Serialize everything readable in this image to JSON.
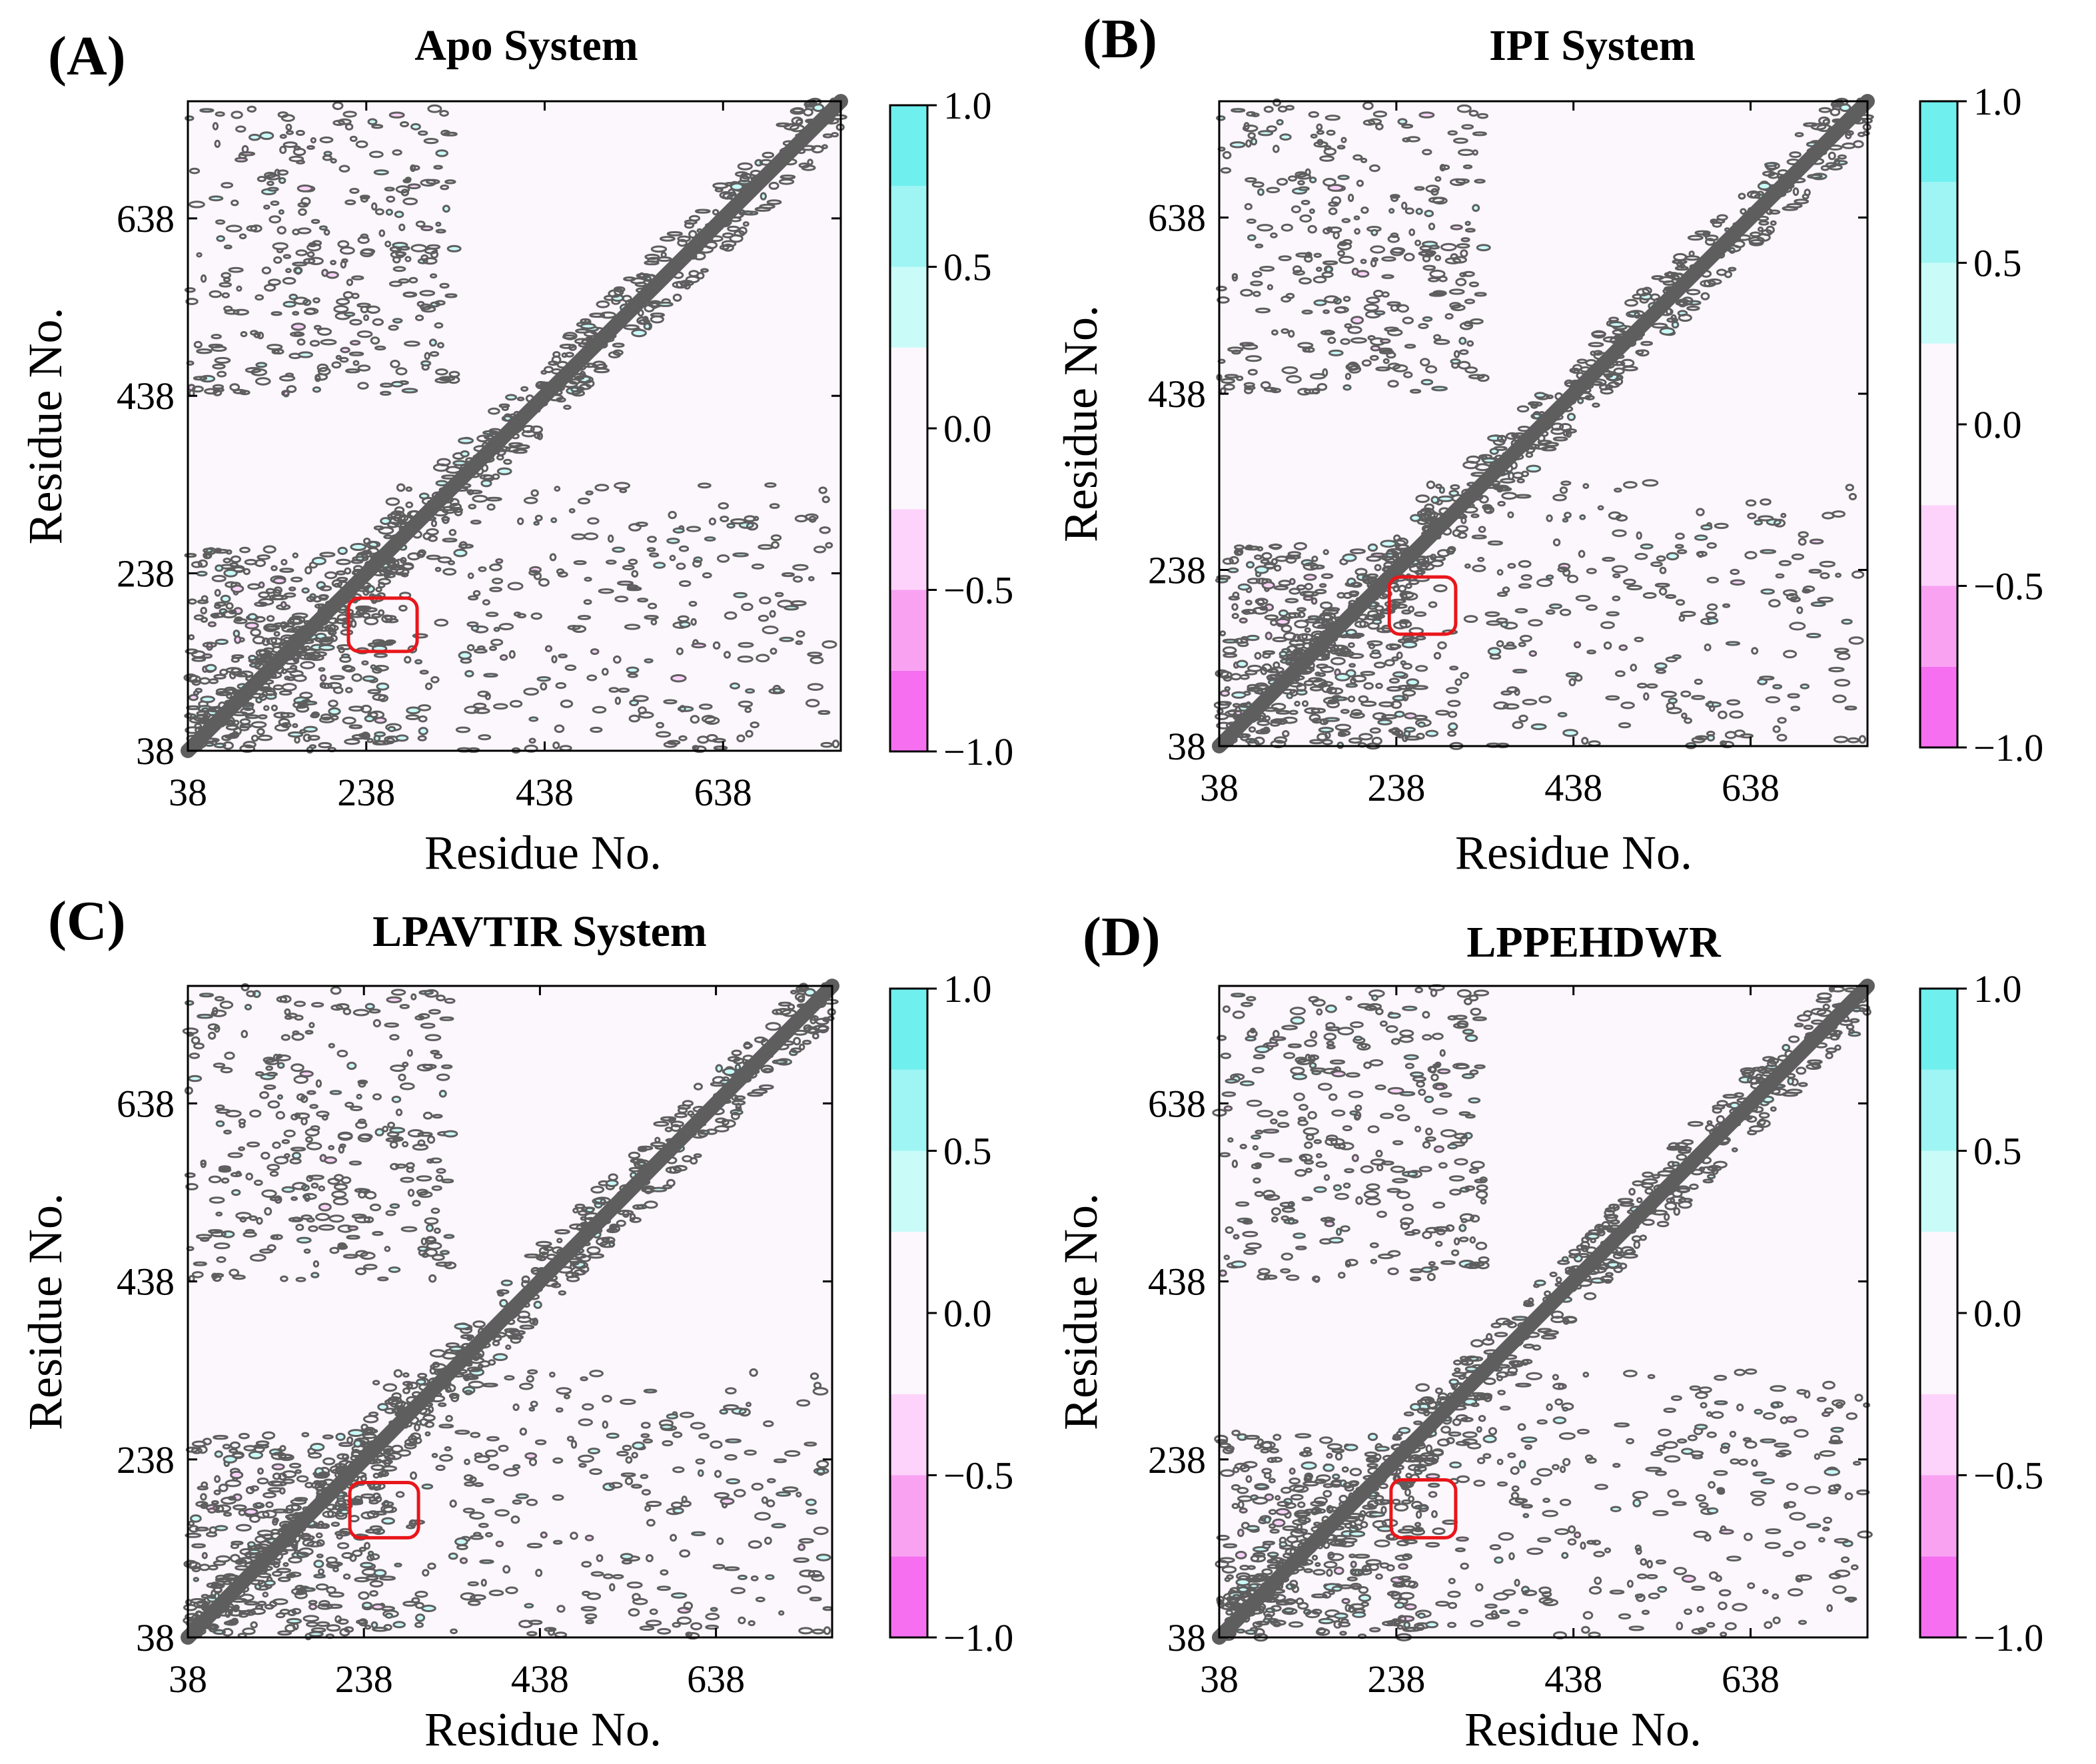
{
  "figure_type": "Dynamic cross-correlation maps (4 panels)",
  "colors": {
    "contour": "#5e5e5e",
    "frame": "#000000",
    "highlight_box": "#e8161b",
    "colorbar": [
      "#f56ff0",
      "#f9a2f2",
      "#fdd3fb",
      "#fbf7fc",
      "#fbf7fc",
      "#c9fbf9",
      "#9ef5f4",
      "#6ff0ef"
    ]
  },
  "chart_data": [
    {
      "type": "heatmap",
      "panel_label": "(A)",
      "title": "Apo System",
      "xlabel": "Residue No.",
      "ylabel": "Residue No.",
      "xticks": [
        "38",
        "238",
        "438",
        "638"
      ],
      "yticks": [
        "38",
        "238",
        "438",
        "638"
      ],
      "xlim": [
        38,
        770
      ],
      "ylim": [
        38,
        770
      ],
      "colorbar": {
        "ticks": [
          "1.0",
          "0.5",
          "0.0",
          "−1.0"
        ],
        "tick_values": [
          1.0,
          0.5,
          0.0,
          -1.0
        ],
        "levels": [
          -1.0,
          -0.75,
          -0.5,
          -0.25,
          0.0,
          0.25,
          0.5,
          0.75,
          1.0
        ],
        "extra_tick": "−0.5"
      },
      "highlight_region": {
        "x": [
          218,
          295
        ],
        "y": [
          150,
          210
        ]
      }
    },
    {
      "type": "heatmap",
      "panel_label": "(B)",
      "title": "IPI System",
      "xlabel": "Residue No.",
      "ylabel": "Residue No.",
      "xticks": [
        "38",
        "238",
        "438",
        "638"
      ],
      "yticks": [
        "38",
        "238",
        "438",
        "638"
      ],
      "xlim": [
        38,
        770
      ],
      "ylim": [
        38,
        770
      ],
      "colorbar": {
        "ticks": [
          "1.0",
          "0.5",
          "0.0",
          "−1.0"
        ],
        "tick_values": [
          1.0,
          0.5,
          0.0,
          -1.0
        ],
        "levels": [
          -1.0,
          -0.75,
          -0.5,
          -0.25,
          0.0,
          0.25,
          0.5,
          0.75,
          1.0
        ],
        "extra_tick": "−0.5"
      },
      "highlight_region": {
        "x": [
          230,
          305
        ],
        "y": [
          165,
          230
        ]
      }
    },
    {
      "type": "heatmap",
      "panel_label": "(C)",
      "title": "LPAVTIR System",
      "xlabel": "Residue No.",
      "ylabel": "Residue No.",
      "xticks": [
        "38",
        "238",
        "438",
        "638"
      ],
      "yticks": [
        "38",
        "238",
        "438",
        "638"
      ],
      "xlim": [
        38,
        770
      ],
      "ylim": [
        38,
        770
      ],
      "colorbar": {
        "ticks": [
          "1.0",
          "0.5",
          "0.0",
          "−1.0"
        ],
        "tick_values": [
          1.0,
          0.5,
          0.0,
          -1.0
        ],
        "levels": [
          -1.0,
          -0.75,
          -0.5,
          -0.25,
          0.0,
          0.25,
          0.5,
          0.75,
          1.0
        ],
        "extra_tick": "−0.5"
      },
      "highlight_region": {
        "x": [
          222,
          300
        ],
        "y": [
          150,
          212
        ]
      }
    },
    {
      "type": "heatmap",
      "panel_label": "(D)",
      "title": "LPPEHDWR",
      "xlabel": "Residue No.",
      "ylabel": "Residue No.",
      "xticks": [
        "38",
        "238",
        "438",
        "638"
      ],
      "yticks": [
        "38",
        "238",
        "438",
        "638"
      ],
      "xlim": [
        38,
        770
      ],
      "ylim": [
        38,
        770
      ],
      "colorbar": {
        "ticks": [
          "1.0",
          "0.5",
          "0.0",
          "−1.0"
        ],
        "tick_values": [
          1.0,
          0.5,
          0.0,
          -1.0
        ],
        "levels": [
          -1.0,
          -0.75,
          -0.5,
          -0.25,
          0.0,
          0.25,
          0.5,
          0.75,
          1.0
        ],
        "extra_tick": "−0.5"
      },
      "highlight_region": {
        "x": [
          232,
          305
        ],
        "y": [
          150,
          215
        ]
      }
    }
  ]
}
